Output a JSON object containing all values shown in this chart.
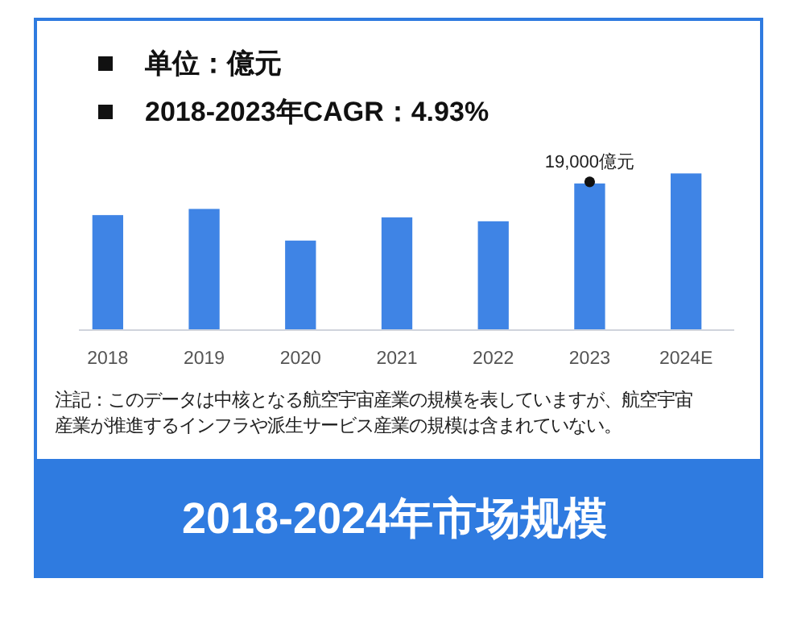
{
  "chart_data": {
    "type": "bar",
    "title": "2018-2024年市场规模",
    "subtitle": "单位：億元",
    "categories": [
      "2018",
      "2019",
      "2020",
      "2021",
      "2022",
      "2023",
      "2024E"
    ],
    "values": [
      14900,
      15700,
      11600,
      14600,
      14100,
      19000,
      20300
    ],
    "value_labels": [
      null,
      null,
      null,
      null,
      null,
      "19,000億元",
      null
    ],
    "color": "#3f84e5",
    "annotations": [
      "2018-2023年CAGR：4.93%",
      "注記：このデータは中核となる航空宇宙産業の規模を表していますが、航空宇宙産業が推進するインフラや派生サービス産業の規模は含まれていない。"
    ]
  }
}
